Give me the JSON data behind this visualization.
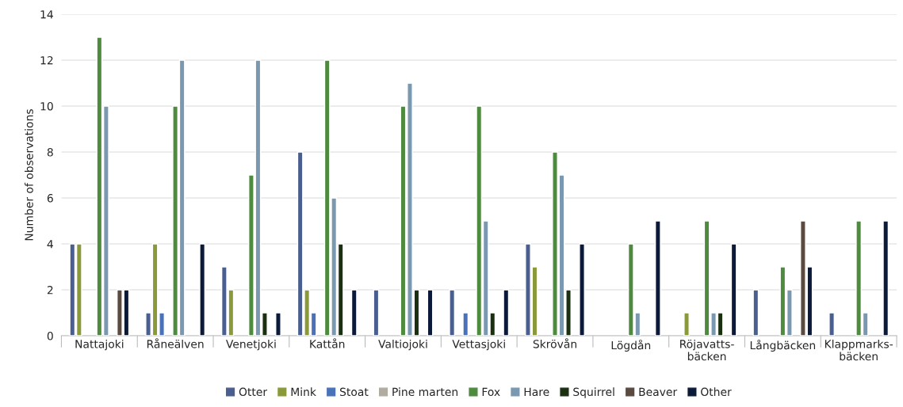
{
  "chart_data": {
    "type": "bar",
    "ylabel": "Number of observations",
    "categories": [
      "Nattajoki",
      "Råneälven",
      "Venetjoki",
      "Kattån",
      "Valtiojoki",
      "Vettasjoki",
      "Skrövån",
      "Lögdån",
      "Röjavatts-\nbäcken",
      "Långbäcken",
      "Klappmarks-\nbäcken"
    ],
    "series": [
      {
        "name": "Otter",
        "color": "#4a5f8f",
        "values": [
          4,
          1,
          3,
          8,
          2,
          2,
          4,
          null,
          null,
          2,
          1
        ]
      },
      {
        "name": "Mink",
        "color": "#8a9a3a",
        "values": [
          4,
          4,
          2,
          2,
          null,
          null,
          3,
          null,
          1,
          null,
          null
        ]
      },
      {
        "name": "Stoat",
        "color": "#4a72b8",
        "values": [
          null,
          1,
          null,
          1,
          null,
          1,
          null,
          null,
          null,
          null,
          null
        ]
      },
      {
        "name": "Pine marten",
        "color": "#b0aca0",
        "values": [
          null,
          null,
          null,
          null,
          null,
          null,
          null,
          null,
          null,
          null,
          null
        ]
      },
      {
        "name": "Fox",
        "color": "#4e8b3e",
        "values": [
          13,
          10,
          7,
          12,
          10,
          10,
          8,
          4,
          5,
          3,
          5
        ]
      },
      {
        "name": "Hare",
        "color": "#7a98b0",
        "values": [
          10,
          12,
          12,
          6,
          11,
          5,
          7,
          1,
          1,
          2,
          1
        ]
      },
      {
        "name": "Squirrel",
        "color": "#1a3010",
        "values": [
          null,
          null,
          1,
          4,
          2,
          1,
          2,
          null,
          1,
          null,
          null
        ]
      },
      {
        "name": "Beaver",
        "color": "#5a4a40",
        "values": [
          2,
          null,
          null,
          null,
          null,
          null,
          null,
          null,
          null,
          5,
          null
        ]
      },
      {
        "name": "Other",
        "color": "#0c1a3a",
        "values": [
          2,
          4,
          1,
          2,
          2,
          2,
          4,
          5,
          4,
          3,
          5
        ]
      }
    ],
    "ylim": [
      0,
      14
    ],
    "yticks": [
      0,
      2,
      4,
      6,
      8,
      10,
      12,
      14
    ],
    "grid": "y",
    "legend": "bottom"
  }
}
